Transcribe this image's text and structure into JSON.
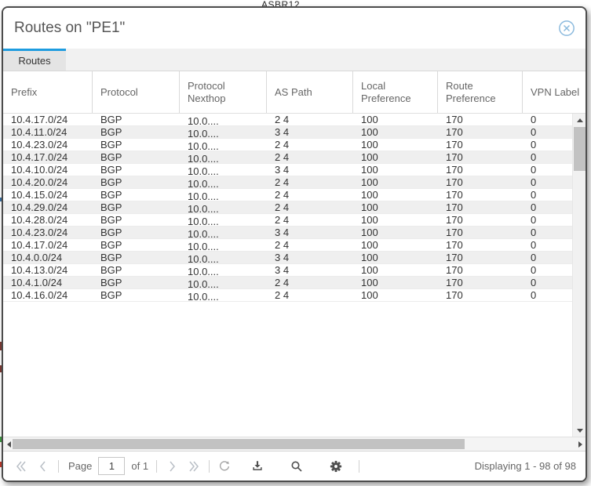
{
  "window": {
    "title": "Routes on \"PE1\""
  },
  "background": {
    "clipped_label": "ASBR12"
  },
  "tabs": [
    {
      "label": "Routes",
      "active": true
    }
  ],
  "table": {
    "columns": [
      {
        "key": "prefix",
        "label": "Prefix"
      },
      {
        "key": "protocol",
        "label": "Protocol"
      },
      {
        "key": "nexthop",
        "label": "Protocol Nexthop"
      },
      {
        "key": "as_path",
        "label": "AS Path"
      },
      {
        "key": "local_pref",
        "label": "Local Preference"
      },
      {
        "key": "route_pref",
        "label": "Route Preference"
      },
      {
        "key": "vpn_label",
        "label": "VPN Label"
      }
    ],
    "rows": [
      {
        "prefix": "10.4.17.0/24",
        "protocol": "BGP",
        "nexthop": "10.0....",
        "as_path": "2 4",
        "local_pref": "100",
        "route_pref": "170",
        "vpn_label": "0"
      },
      {
        "prefix": "10.4.11.0/24",
        "protocol": "BGP",
        "nexthop": "10.0....",
        "as_path": "3 4",
        "local_pref": "100",
        "route_pref": "170",
        "vpn_label": "0"
      },
      {
        "prefix": "10.4.23.0/24",
        "protocol": "BGP",
        "nexthop": "10.0....",
        "as_path": "2 4",
        "local_pref": "100",
        "route_pref": "170",
        "vpn_label": "0"
      },
      {
        "prefix": "10.4.17.0/24",
        "protocol": "BGP",
        "nexthop": "10.0....",
        "as_path": "2 4",
        "local_pref": "100",
        "route_pref": "170",
        "vpn_label": "0"
      },
      {
        "prefix": "10.4.10.0/24",
        "protocol": "BGP",
        "nexthop": "10.0....",
        "as_path": "3 4",
        "local_pref": "100",
        "route_pref": "170",
        "vpn_label": "0"
      },
      {
        "prefix": "10.4.20.0/24",
        "protocol": "BGP",
        "nexthop": "10.0....",
        "as_path": "2 4",
        "local_pref": "100",
        "route_pref": "170",
        "vpn_label": "0"
      },
      {
        "prefix": "10.4.15.0/24",
        "protocol": "BGP",
        "nexthop": "10.0....",
        "as_path": "2 4",
        "local_pref": "100",
        "route_pref": "170",
        "vpn_label": "0"
      },
      {
        "prefix": "10.4.29.0/24",
        "protocol": "BGP",
        "nexthop": "10.0....",
        "as_path": "2 4",
        "local_pref": "100",
        "route_pref": "170",
        "vpn_label": "0"
      },
      {
        "prefix": "10.4.28.0/24",
        "protocol": "BGP",
        "nexthop": "10.0....",
        "as_path": "2 4",
        "local_pref": "100",
        "route_pref": "170",
        "vpn_label": "0"
      },
      {
        "prefix": "10.4.23.0/24",
        "protocol": "BGP",
        "nexthop": "10.0....",
        "as_path": "3 4",
        "local_pref": "100",
        "route_pref": "170",
        "vpn_label": "0"
      },
      {
        "prefix": "10.4.17.0/24",
        "protocol": "BGP",
        "nexthop": "10.0....",
        "as_path": "2 4",
        "local_pref": "100",
        "route_pref": "170",
        "vpn_label": "0"
      },
      {
        "prefix": "10.4.0.0/24",
        "protocol": "BGP",
        "nexthop": "10.0....",
        "as_path": "3 4",
        "local_pref": "100",
        "route_pref": "170",
        "vpn_label": "0"
      },
      {
        "prefix": "10.4.13.0/24",
        "protocol": "BGP",
        "nexthop": "10.0....",
        "as_path": "3 4",
        "local_pref": "100",
        "route_pref": "170",
        "vpn_label": "0"
      },
      {
        "prefix": "10.4.1.0/24",
        "protocol": "BGP",
        "nexthop": "10.0....",
        "as_path": "2 4",
        "local_pref": "100",
        "route_pref": "170",
        "vpn_label": "0"
      },
      {
        "prefix": "10.4.16.0/24",
        "protocol": "BGP",
        "nexthop": "10.0....",
        "as_path": "2 4",
        "local_pref": "100",
        "route_pref": "170",
        "vpn_label": "0"
      }
    ]
  },
  "pagination": {
    "page_label": "Page",
    "page_value": "1",
    "of_label": "of 1",
    "displaying": "Displaying 1 - 98 of 98"
  },
  "icons": {
    "close": "circled-x",
    "first": "double-chevron-left",
    "prev": "chevron-left",
    "next": "chevron-right",
    "last": "double-chevron-right",
    "refresh": "circular-arrow",
    "download": "download-tray",
    "search": "magnifier",
    "settings": "gear"
  },
  "colors": {
    "accent_blue": "#1e9cdf",
    "close_icon_blue": "#8ab9dd",
    "row_alt": "#efefef",
    "icon_dark": "#4f4f4f",
    "icon_disabled": "#b9bfc6",
    "text_muted": "#666666",
    "border": "#d9d9d9"
  }
}
